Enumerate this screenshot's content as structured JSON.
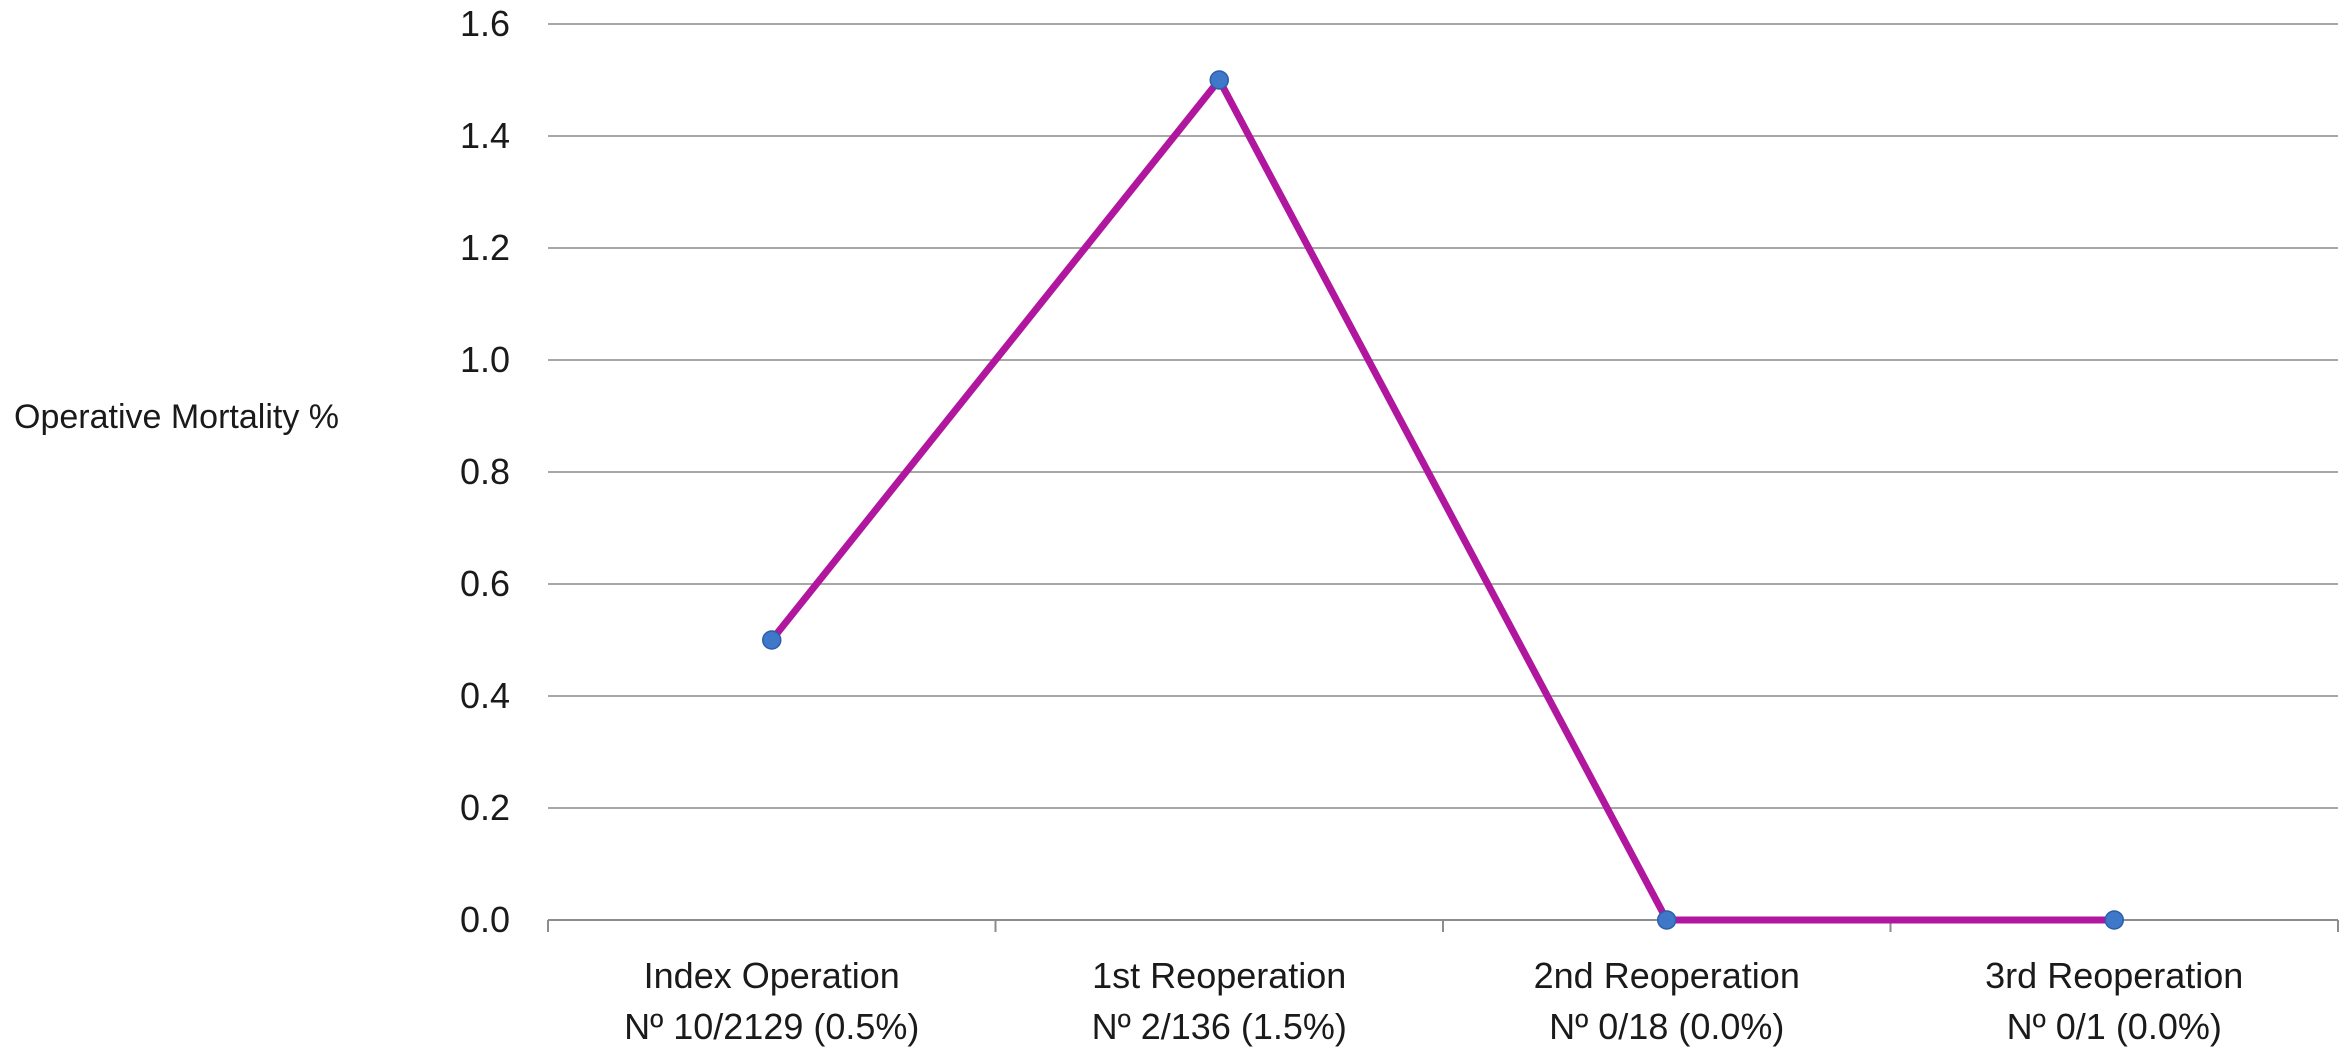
{
  "chart_data": {
    "type": "line",
    "ylabel": "Operative Mortality %",
    "xlabel": "",
    "ylim": [
      0,
      1.6
    ],
    "yticks": [
      "0.0",
      "0.2",
      "0.4",
      "0.6",
      "0.8",
      "1.0",
      "1.2",
      "1.4",
      "1.6"
    ],
    "categories": [
      {
        "line1": "Index Operation",
        "line2": "Nº 10/2129 (0.5%)"
      },
      {
        "line1": "1st Reoperation",
        "line2": "Nº 2/136 (1.5%)"
      },
      {
        "line1": "2nd Reoperation",
        "line2": "Nº 0/18 (0.0%)"
      },
      {
        "line1": "3rd Reoperation",
        "line2": "Nº 0/1 (0.0%)"
      }
    ],
    "series": [
      {
        "values": [
          0.5,
          1.5,
          0.0,
          0.0
        ]
      }
    ],
    "grid": true,
    "colors": {
      "line": "#b0179e",
      "marker": "#3f78c9",
      "grid": "#8c8c8c",
      "axis": "#8c8c8c"
    }
  }
}
